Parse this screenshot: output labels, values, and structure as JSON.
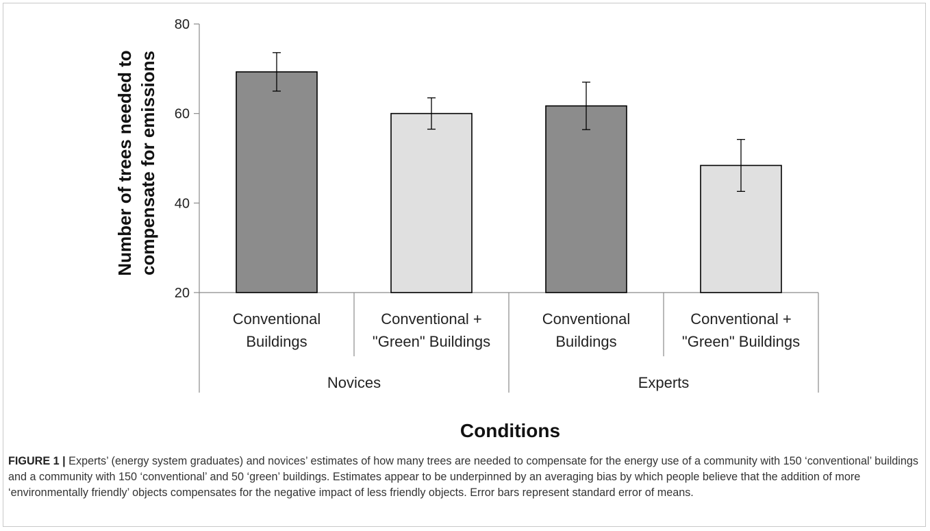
{
  "chart_data": {
    "type": "bar",
    "ylabel": "Number of trees needed to compensate for emissions",
    "xlabel": "Conditions",
    "ylim": [
      20,
      80
    ],
    "yticks": [
      20,
      40,
      60,
      80
    ],
    "grid": false,
    "groups": [
      {
        "label": "Novices",
        "categories": [
          "Conventional Buildings",
          "Conventional + \"Green\" Buildings"
        ]
      },
      {
        "label": "Experts",
        "categories": [
          "Conventional Buildings",
          "Conventional + \"Green\" Buildings"
        ]
      }
    ],
    "bars": [
      {
        "group": "Novices",
        "category": "Conventional Buildings",
        "value": 69.3,
        "error": 4.3,
        "color": "#8c8c8c"
      },
      {
        "group": "Novices",
        "category": "Conventional + \"Green\" Buildings",
        "value": 60.0,
        "error": 3.5,
        "color": "#e0e0e0"
      },
      {
        "group": "Experts",
        "category": "Conventional Buildings",
        "value": 61.7,
        "error": 5.3,
        "color": "#8c8c8c"
      },
      {
        "group": "Experts",
        "category": "Conventional + \"Green\" Buildings",
        "value": 48.4,
        "error": 5.8,
        "color": "#e0e0e0"
      }
    ],
    "category_label_lines": [
      [
        "Conventional",
        "Buildings"
      ],
      [
        "Conventional +",
        "\"Green\" Buildings"
      ],
      [
        "Conventional",
        "Buildings"
      ],
      [
        "Conventional +",
        "\"Green\" Buildings"
      ]
    ]
  },
  "caption": {
    "label": "FIGURE 1 |",
    "text": " Experts’ (energy system graduates) and novices’ estimates of how many trees are needed to compensate for the energy use of a community with 150 ‘conventional’ buildings and a community with 150 ‘conventional’ and 50 ‘green’ buildings. Estimates appear to be underpinned by an averaging bias by which people believe that the addition of more ‘environmentally friendly’ objects compensates for the negative impact of less friendly objects. Error bars represent standard error of means."
  }
}
